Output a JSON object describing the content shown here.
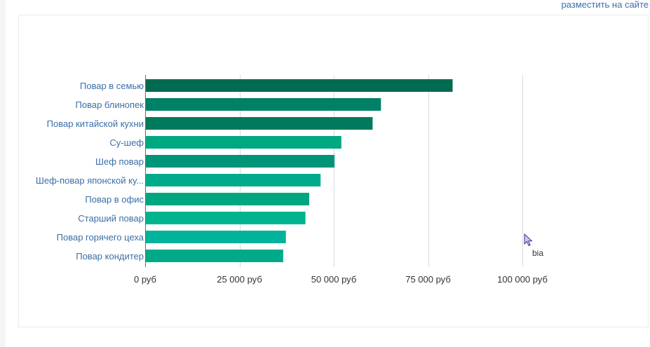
{
  "header": {
    "embed_link_label": "разместить на сайте"
  },
  "cursor_text": "bia",
  "colors": {
    "bar_shades": [
      "#006b50",
      "#008065",
      "#007a5c",
      "#00a882",
      "#009578",
      "#00ab8c",
      "#00a680",
      "#00b48e",
      "#00b39a",
      "#00aa88"
    ],
    "axis": "#2a7fb8",
    "grid": "#d9d9d9",
    "category_label": "#3b6ea8"
  },
  "chart_data": {
    "type": "bar",
    "orientation": "horizontal",
    "categories": [
      "Повар в семью",
      "Повар блинопек",
      "Повар китайской кухни",
      "Су-шеф",
      "Шеф повар",
      "Шеф-повар японской ку...",
      "Повар в офис",
      "Старший повар",
      "Повар горячего цеха",
      "Повар кондитер"
    ],
    "values": [
      81500,
      62500,
      60300,
      52000,
      50200,
      46500,
      43500,
      42500,
      37300,
      36600
    ],
    "xlim": [
      0,
      100000
    ],
    "xticks": [
      0,
      25000,
      50000,
      75000,
      100000
    ],
    "xtick_labels": [
      "0 руб",
      "25 000 руб",
      "50 000 руб",
      "75 000 руб",
      "100 000 руб"
    ],
    "grid": true,
    "legend": "none"
  }
}
